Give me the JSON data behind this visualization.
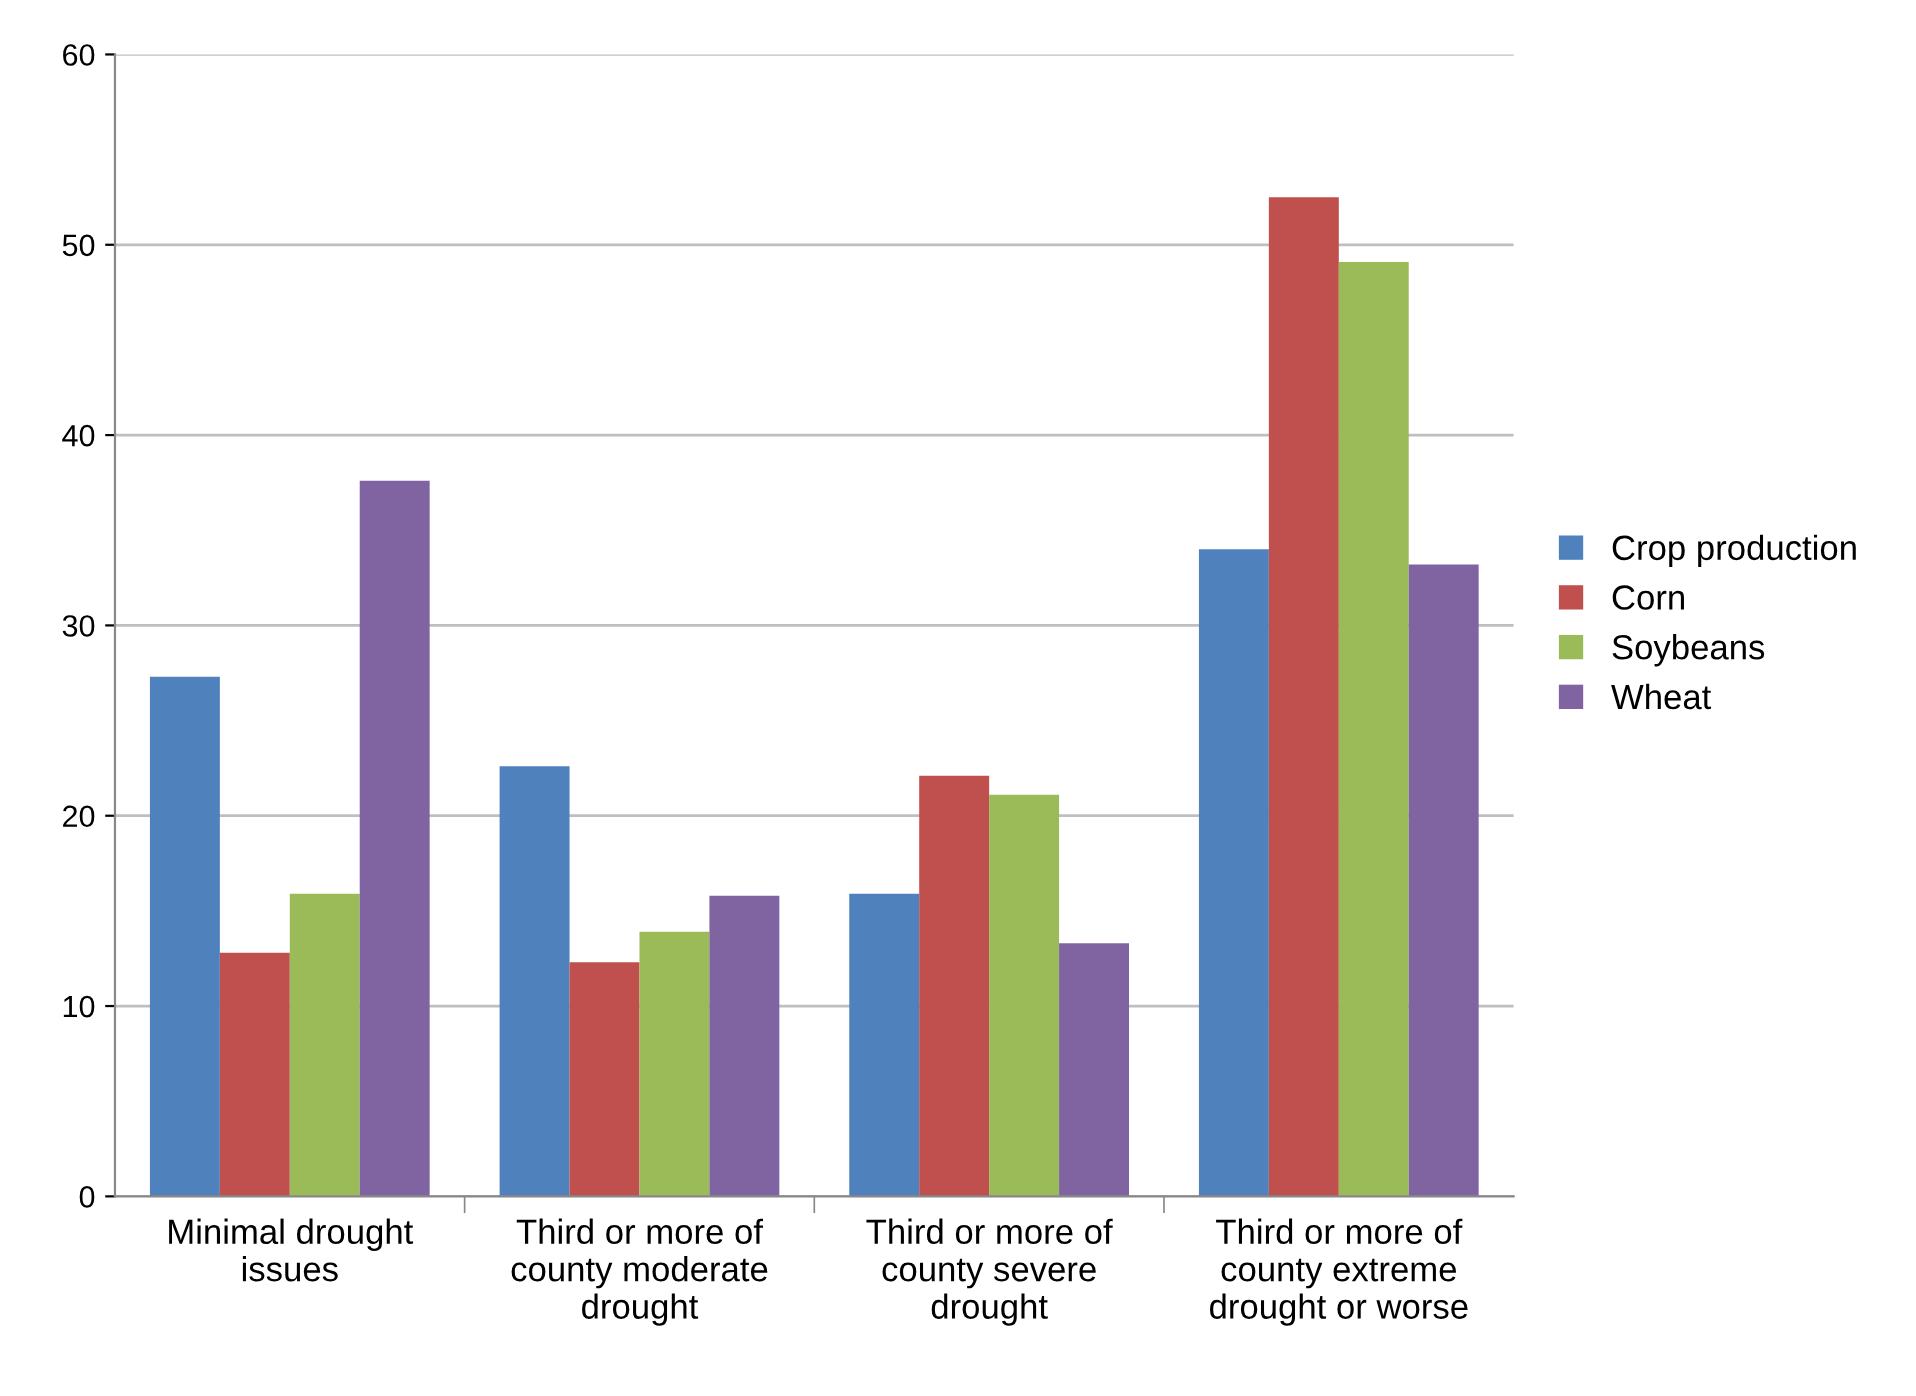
{
  "chart_data": {
    "type": "bar",
    "categories": [
      "Minimal drought issues",
      "Third or more of county moderate drought",
      "Third or more of county severe drought",
      "Third or more of county extreme drought or worse"
    ],
    "series": [
      {
        "name": "Crop production",
        "color": "#4f81bd",
        "values": [
          27.3,
          22.6,
          15.9,
          34.0
        ]
      },
      {
        "name": "Corn",
        "color": "#c0504d",
        "values": [
          12.8,
          12.3,
          22.1,
          52.5
        ]
      },
      {
        "name": "Soybeans",
        "color": "#9bbb59",
        "values": [
          15.9,
          13.9,
          21.1,
          49.1
        ]
      },
      {
        "name": "Wheat",
        "color": "#8064a2",
        "values": [
          37.6,
          15.8,
          13.3,
          33.2
        ]
      }
    ],
    "ylim": [
      0,
      60
    ],
    "yticks": [
      0,
      10,
      20,
      30,
      40,
      50,
      60
    ],
    "grid": "y",
    "legend": "right"
  }
}
